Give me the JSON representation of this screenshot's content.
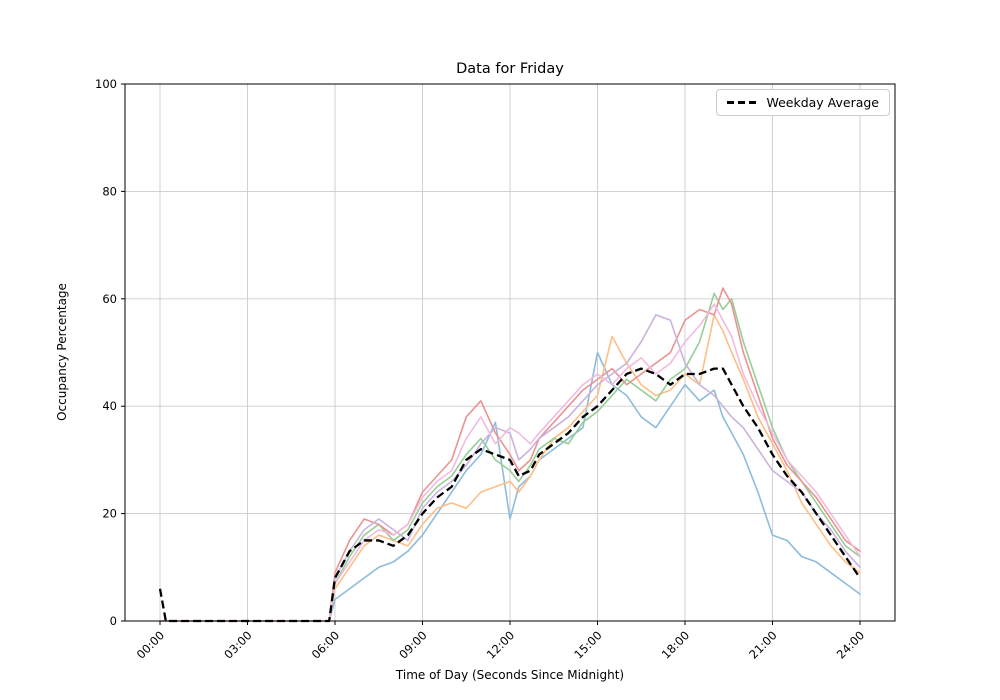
{
  "figure": {
    "title": "Data for Friday",
    "xlabel": "Time of Day (Seconds Since Midnight)",
    "ylabel": "Occupancy Percentage",
    "legend_label": "Weekday Average"
  },
  "chart_data": {
    "type": "line",
    "title": "Data for Friday",
    "xlabel": "Time of Day (Seconds Since Midnight)",
    "ylabel": "Occupancy Percentage",
    "grid": true,
    "legend_position": "upper right",
    "legend_entries": [
      "Weekday Average"
    ],
    "ylim": [
      0,
      100
    ],
    "yticks": [
      0,
      20,
      40,
      60,
      80,
      100
    ],
    "xlim_hours": [
      0,
      24
    ],
    "xticks": {
      "positions_hours": [
        0,
        3,
        6,
        9,
        12,
        15,
        18,
        21,
        24
      ],
      "labels": [
        "00:00",
        "03:00",
        "06:00",
        "09:00",
        "12:00",
        "15:00",
        "18:00",
        "21:00",
        "24:00"
      ]
    },
    "x_hours": [
      0,
      0.2,
      1,
      2,
      3,
      4,
      5,
      5.8,
      6,
      6.5,
      7,
      7.5,
      8,
      8.5,
      9,
      9.5,
      10,
      10.5,
      11,
      11.5,
      12,
      12.3,
      12.7,
      13,
      13.5,
      14,
      14.5,
      15,
      15.5,
      16,
      16.5,
      17,
      17.5,
      18,
      18.5,
      19,
      19.3,
      19.6,
      20,
      20.5,
      21,
      21.5,
      22,
      22.5,
      23,
      23.5,
      24
    ],
    "series": [
      {
        "id": "line-1",
        "color": "#8ebcdb",
        "values": [
          0,
          0,
          0,
          0,
          0,
          0,
          0,
          0,
          4,
          6,
          8,
          10,
          11,
          13,
          16,
          20,
          24,
          28,
          31,
          37,
          19,
          25,
          27,
          30,
          32,
          34,
          36,
          50,
          44,
          42,
          38,
          36,
          40,
          44,
          41,
          43,
          38,
          35,
          31,
          24,
          16,
          15,
          12,
          11,
          9,
          7,
          5
        ]
      },
      {
        "id": "line-2",
        "color": "#ffbe86",
        "values": [
          0,
          0,
          0,
          0,
          0,
          0,
          0,
          0,
          6,
          10,
          14,
          16,
          15,
          14,
          18,
          21,
          22,
          21,
          24,
          25,
          26,
          24,
          27,
          30,
          34,
          36,
          39,
          42,
          53,
          48,
          44,
          42,
          43,
          46,
          44,
          57,
          54,
          50,
          45,
          38,
          33,
          28,
          22,
          18,
          14,
          11,
          9
        ]
      },
      {
        "id": "line-3",
        "color": "#95cf95",
        "values": [
          0,
          0,
          0,
          0,
          0,
          0,
          0,
          0,
          7,
          12,
          16,
          18,
          15,
          17,
          22,
          25,
          27,
          31,
          34,
          30,
          28,
          26,
          29,
          32,
          34,
          33,
          37,
          39,
          42,
          45,
          43,
          41,
          45,
          47,
          52,
          61,
          58,
          60,
          52,
          44,
          36,
          30,
          26,
          22,
          18,
          14,
          12
        ]
      },
      {
        "id": "line-4",
        "color": "#ea9393",
        "values": [
          0,
          0,
          0,
          0,
          0,
          0,
          0,
          0,
          9,
          15,
          19,
          18,
          16,
          18,
          24,
          27,
          30,
          38,
          41,
          35,
          31,
          28,
          30,
          34,
          37,
          40,
          43,
          45,
          47,
          44,
          46,
          48,
          50,
          56,
          58,
          57,
          62,
          59,
          50,
          42,
          34,
          29,
          26,
          23,
          19,
          15,
          13
        ]
      },
      {
        "id": "line-5",
        "color": "#c9b3de",
        "values": [
          0,
          0,
          0,
          0,
          0,
          0,
          0,
          0,
          8,
          13,
          17,
          19,
          17,
          15,
          21,
          24,
          26,
          29,
          33,
          36,
          35,
          30,
          32,
          34,
          36,
          38,
          41,
          44,
          46,
          48,
          52,
          57,
          56,
          48,
          44,
          42,
          40,
          38,
          36,
          32,
          28,
          26,
          24,
          20,
          17,
          13,
          10
        ]
      },
      {
        "id": "line-6",
        "color": "#f1bbe0",
        "values": [
          0,
          0,
          0,
          0,
          0,
          0,
          0,
          0,
          7,
          11,
          15,
          17,
          16,
          18,
          23,
          26,
          28,
          34,
          38,
          33,
          36,
          35,
          33,
          35,
          38,
          41,
          44,
          46,
          44,
          47,
          49,
          46,
          48,
          52,
          55,
          59,
          56,
          53,
          46,
          40,
          35,
          30,
          27,
          24,
          20,
          16,
          12
        ]
      }
    ],
    "average_series": {
      "name": "Weekday Average",
      "color": "#000000",
      "dashed": true,
      "values": [
        6,
        0,
        0,
        0,
        0,
        0,
        0,
        0,
        8,
        13,
        15,
        15,
        14,
        16,
        20,
        23,
        25,
        30,
        32,
        31,
        30,
        27,
        28,
        31,
        33,
        35,
        38,
        40,
        43,
        46,
        47,
        46,
        44,
        46,
        46,
        47,
        47,
        44,
        40,
        36,
        31,
        27,
        24,
        20,
        16,
        12,
        8
      ]
    },
    "style": {
      "grid_color": "#cccccc",
      "spine_color": "#000000",
      "background": "#ffffff"
    }
  }
}
